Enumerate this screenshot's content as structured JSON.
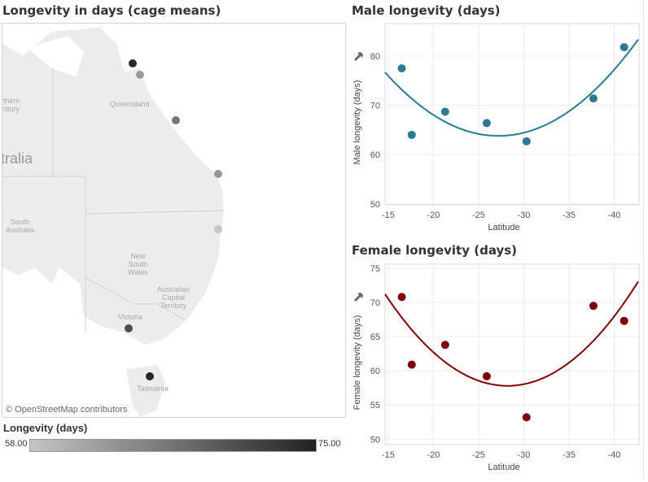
{
  "map_panel": {
    "title": "Longevity in days (cage means)",
    "attribution": "© OpenStreetMap contributors",
    "labels": {
      "northern_territory": "rthern\nrritory",
      "queensland": "Queensland",
      "australia": "tralia",
      "south_australia": "South\nAustralia",
      "nsw": "New\nSouth\nWales",
      "act": "Australian\nCapital\nTerritory",
      "victoria": "Victoria",
      "tasmania": "Tasmania"
    },
    "points": [
      {
        "latitude": -16.5,
        "longevity": 74.2
      },
      {
        "latitude": -17.6,
        "longevity": 62.5
      },
      {
        "latitude": -21.3,
        "longevity": 66.3
      },
      {
        "latitude": -25.9,
        "longevity": 62.8
      },
      {
        "latitude": -30.3,
        "longevity": 58.0
      },
      {
        "latitude": -37.7,
        "longevity": 70.5
      },
      {
        "latitude": -41.1,
        "longevity": 74.6
      }
    ],
    "legend": {
      "title": "Longevity (days)",
      "min": "58.00",
      "max": "75.00",
      "color_min": "#c4c4c4",
      "color_max": "#222222"
    }
  },
  "chart_data": [
    {
      "type": "scatter",
      "title": "Male longevity (days)",
      "xlabel": "Latitude",
      "ylabel": "Male longevity (days)",
      "xlim": [
        -14.65,
        -42.75
      ],
      "ylim": [
        49.8,
        86.6
      ],
      "xticks": [
        -15,
        -20,
        -25,
        -30,
        -35,
        -40
      ],
      "xtick_labels": [
        "-15",
        "-20",
        "-25",
        "-30",
        "-35",
        "-40"
      ],
      "yticks": [
        50,
        60,
        70,
        80
      ],
      "ytick_labels": [
        "50",
        "60",
        "70",
        "80"
      ],
      "grid": true,
      "color": "#2a7a96",
      "x": [
        -16.5,
        -17.6,
        -21.3,
        -25.9,
        -30.3,
        -37.7,
        -41.1
      ],
      "y": [
        77.5,
        64.0,
        68.7,
        66.4,
        62.7,
        71.4,
        81.8
      ],
      "trend": {
        "type": "quadratic",
        "vertex_x": -27.2,
        "vertex_y": 63.8,
        "a": 0.082
      }
    },
    {
      "type": "scatter",
      "title": "Female longevity (days)",
      "xlabel": "Latitude",
      "ylabel": "Female longevity (days)",
      "xlim": [
        -14.65,
        -42.75
      ],
      "ylim": [
        49.2,
        75.6
      ],
      "xticks": [
        -15,
        -20,
        -25,
        -30,
        -35,
        -40
      ],
      "xtick_labels": [
        "-15",
        "-20",
        "-25",
        "-30",
        "-35",
        "-40"
      ],
      "yticks": [
        50,
        55,
        60,
        65,
        70,
        75
      ],
      "ytick_labels": [
        "50",
        "55",
        "60",
        "65",
        "70",
        "75"
      ],
      "grid": true,
      "color": "#7f0000",
      "x": [
        -16.5,
        -17.6,
        -21.3,
        -25.9,
        -30.3,
        -37.7,
        -41.1
      ],
      "y": [
        70.8,
        60.9,
        63.8,
        59.2,
        53.2,
        69.5,
        67.3
      ],
      "trend": {
        "type": "quadratic",
        "vertex_x": -28.2,
        "vertex_y": 57.8,
        "a": 0.073
      }
    }
  ]
}
